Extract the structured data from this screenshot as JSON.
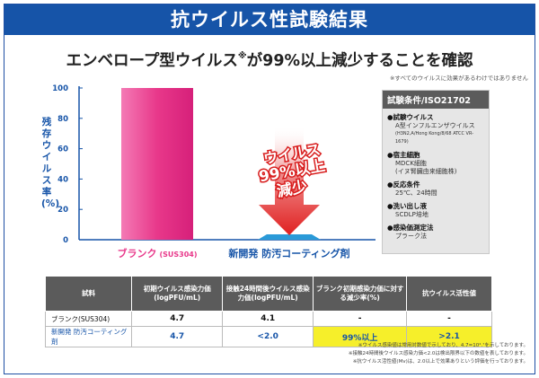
{
  "title": "抗ウイルス性試験結果",
  "headline": {
    "text_before": "エンベロープ型ウイルス",
    "mark": "※",
    "text_after": "が99%以上減少することを確認",
    "note": "※すべてのウイルスに効果があるわけではありません"
  },
  "chart_data": {
    "type": "bar",
    "ylabel": "残存ウイルス率(%)",
    "ylim": [
      0,
      100
    ],
    "yticks": [
      0,
      20,
      40,
      60,
      80,
      100
    ],
    "categories": [
      "ブランク(SUS304)",
      "新開発 防汚コーティング剤"
    ],
    "category_parts": [
      {
        "main": "ブランク",
        "sub": "(SUS304)"
      },
      {
        "main": "新開発 防汚コーティング剤",
        "sub": ""
      }
    ],
    "values": [
      100,
      1
    ],
    "colors": [
      "#e8388a",
      "#2a9ad8"
    ],
    "annotation": {
      "line1": "ウイルス",
      "line2": "99%以上",
      "line3": "減少"
    }
  },
  "conditions": {
    "heading": "試験条件/ISO21702",
    "items": [
      {
        "label": "●試験ウイルス",
        "values": [
          "A型インフルエンザウイルス"
        ],
        "small": "(H3N2,A/Hong Kong/8/68 ATCC VR-1679)"
      },
      {
        "label": "●宿主細胞",
        "values": [
          "MDCK細胞",
          "(イヌ腎臓由来細胞株)"
        ],
        "small": ""
      },
      {
        "label": "●反応条件",
        "values": [
          "25℃、24時間"
        ],
        "small": ""
      },
      {
        "label": "●洗い出し液",
        "values": [
          "SCDLP培地"
        ],
        "small": ""
      },
      {
        "label": "●感染価測定法",
        "values": [
          "プラーク法"
        ],
        "small": ""
      }
    ]
  },
  "table": {
    "headers": [
      "試料",
      "初期ウイルス感染力価(logPFU/mL)",
      "接触24時間後ウイルス感染力価(logPFU/mL)",
      "ブランク初期感染力価に対する減少率(%)",
      "抗ウイルス活性値"
    ],
    "rows": [
      [
        "ブランク(SUS304)",
        "4.7",
        "4.1",
        "-",
        "-"
      ],
      [
        "新開発 防汚コーティング剤",
        "4.7",
        "<2.0",
        "99%以上",
        ">2.1"
      ]
    ]
  },
  "footnotes": [
    "※ウイルス感染値は常用対数値で示しており、4.7=10⁴.⁷を示しております。",
    "※接触24時間後ウイルス感染力価<2.0は検出限界以下の数値を表しております。",
    "※抗ウイルス活性値(Mv)は、2.0以上で効果ありという評価を行っております。"
  ]
}
